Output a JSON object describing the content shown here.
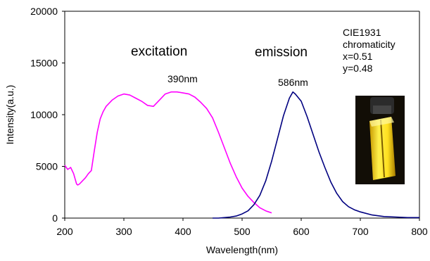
{
  "chart_data": {
    "type": "line",
    "xlabel": "Wavelength(nm)",
    "ylabel": "Intensity(a.u.)",
    "xlim": [
      200,
      800
    ],
    "ylim": [
      0,
      20000
    ],
    "xticks": [
      "200",
      "300",
      "400",
      "500",
      "600",
      "700",
      "800"
    ],
    "yticks": [
      "0",
      "5000",
      "10000",
      "15000",
      "20000"
    ],
    "grid": false,
    "series": [
      {
        "name": "excitation",
        "color": "#ff00ff",
        "x": [
          200,
          205,
          210,
          215,
          220,
          222,
          225,
          230,
          235,
          240,
          245,
          250,
          255,
          260,
          265,
          270,
          280,
          290,
          300,
          310,
          320,
          330,
          340,
          350,
          360,
          370,
          380,
          390,
          400,
          410,
          420,
          430,
          440,
          450,
          460,
          470,
          480,
          490,
          500,
          510,
          520,
          530,
          540,
          550
        ],
        "y": [
          5100,
          4700,
          4900,
          4300,
          3300,
          3200,
          3300,
          3600,
          3900,
          4300,
          4600,
          6500,
          8300,
          9600,
          10300,
          10800,
          11400,
          11800,
          12000,
          11900,
          11600,
          11300,
          10900,
          10800,
          11400,
          12000,
          12200,
          12200,
          12100,
          12000,
          11700,
          11200,
          10600,
          9700,
          8300,
          6800,
          5300,
          4000,
          2900,
          2100,
          1500,
          1000,
          700,
          500
        ]
      },
      {
        "name": "emission",
        "color": "#000080",
        "x": [
          450,
          460,
          470,
          480,
          490,
          500,
          510,
          520,
          530,
          540,
          550,
          560,
          570,
          580,
          586,
          590,
          600,
          610,
          620,
          630,
          640,
          650,
          660,
          670,
          680,
          690,
          700,
          720,
          740,
          760,
          780,
          800
        ],
        "y": [
          0,
          0,
          50,
          100,
          200,
          400,
          700,
          1300,
          2200,
          3600,
          5500,
          7700,
          9900,
          11600,
          12200,
          12000,
          11300,
          9800,
          8100,
          6400,
          4900,
          3500,
          2400,
          1600,
          1100,
          800,
          600,
          300,
          150,
          100,
          50,
          50
        ]
      }
    ],
    "annotations": {
      "excitation": "excitation",
      "emission": "emission",
      "peak_excitation": "390nm",
      "peak_emission": "586nm",
      "cie_line1": "CIE1931",
      "cie_line2": "chromaticity",
      "cie_x": "x=0.51",
      "cie_y": "y=0.48"
    }
  }
}
